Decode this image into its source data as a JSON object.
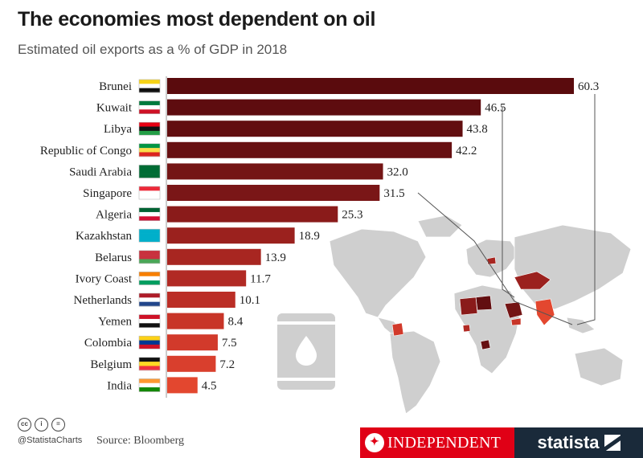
{
  "header": {
    "title": "The economies most dependent on oil",
    "subtitle": "Estimated oil exports as a % of GDP in 2018"
  },
  "chart_data": {
    "type": "bar",
    "orientation": "horizontal",
    "title": "The economies most dependent on oil",
    "subtitle": "Estimated oil exports as a % of GDP in 2018",
    "categories": [
      "Brunei",
      "Kuwait",
      "Libya",
      "Republic of Congo",
      "Saudi Arabia",
      "Singapore",
      "Algeria",
      "Kazakhstan",
      "Belarus",
      "Ivory Coast",
      "Netherlands",
      "Yemen",
      "Colombia",
      "Belgium",
      "India"
    ],
    "values": [
      60.3,
      46.5,
      43.8,
      42.2,
      32.0,
      31.5,
      25.3,
      18.9,
      13.9,
      11.7,
      10.1,
      8.4,
      7.5,
      7.2,
      4.5
    ],
    "value_labels": [
      "60.3",
      "46.5",
      "43.8",
      "42.2",
      "32.0",
      "31.5",
      "25.3",
      "18.9",
      "13.9",
      "11.7",
      "10.1",
      "8.4",
      "7.5",
      "7.2",
      "4.5"
    ],
    "xlim": [
      0,
      60.3
    ],
    "grid": false,
    "legend": "none",
    "bar_colors": [
      "#5a0b0d",
      "#5e0c0f",
      "#620e10",
      "#671012",
      "#741515",
      "#7a1617",
      "#8a1b1a",
      "#9b211e",
      "#a82621",
      "#b12a24",
      "#bb2e26",
      "#c83528",
      "#d23a2b",
      "#d93f2d",
      "#e3472f"
    ],
    "highlight_color_map": "#7a1617",
    "map_base_color": "#cfcfcf"
  },
  "footer": {
    "cc_icons": [
      "cc",
      "i",
      "="
    ],
    "handle": "@StatistaCharts",
    "source": "Source: Bloomberg",
    "publisher": "INDEPENDENT",
    "brand": "statista"
  }
}
